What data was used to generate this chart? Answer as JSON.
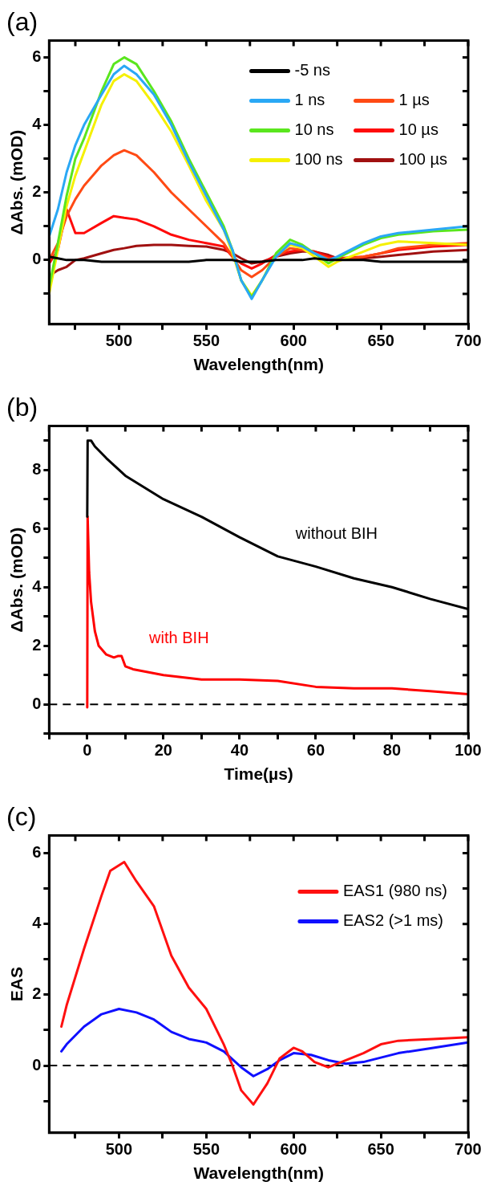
{
  "chart_data": [
    {
      "type": "line",
      "title": "(a)",
      "xlabel": "Wavelength(nm)",
      "ylabel": "ΔAbs. (mOD)",
      "legend": "top right",
      "x": [
        460,
        465,
        470,
        475,
        480,
        490,
        497,
        503,
        510,
        520,
        530,
        540,
        550,
        560,
        565,
        570,
        576,
        582,
        590,
        598,
        605,
        612,
        620,
        625,
        640,
        650,
        660,
        680,
        700
      ],
      "series": [
        {
          "name": "-5 ns",
          "color": "#000000",
          "values": [
            0.1,
            0.05,
            0.0,
            0.0,
            0.0,
            -0.05,
            -0.05,
            -0.05,
            -0.05,
            -0.05,
            -0.05,
            -0.05,
            0.0,
            0.0,
            0.0,
            -0.05,
            -0.05,
            -0.05,
            0.0,
            0.0,
            0.0,
            0.05,
            0.0,
            0.0,
            0.0,
            -0.05,
            -0.05,
            -0.05,
            -0.05
          ]
        },
        {
          "name": "1 ns",
          "color": "#2aa8f5",
          "values": [
            0.7,
            1.5,
            2.6,
            3.4,
            4.0,
            4.9,
            5.5,
            5.75,
            5.5,
            4.9,
            4.0,
            2.9,
            1.9,
            0.9,
            0.3,
            -0.6,
            -1.15,
            -0.6,
            0.1,
            0.5,
            0.4,
            0.2,
            0.0,
            0.1,
            0.5,
            0.7,
            0.8,
            0.9,
            1.0
          ]
        },
        {
          "name": "10 ns",
          "color": "#5ae61e",
          "values": [
            -0.8,
            0.5,
            1.9,
            3.0,
            3.6,
            5.0,
            5.8,
            6.0,
            5.8,
            5.0,
            4.1,
            3.0,
            2.0,
            1.0,
            0.3,
            -0.6,
            -1.1,
            -0.6,
            0.2,
            0.6,
            0.45,
            0.2,
            -0.1,
            0.05,
            0.45,
            0.65,
            0.75,
            0.85,
            0.9
          ]
        },
        {
          "name": "100 ns",
          "color": "#f5f000",
          "values": [
            -1.0,
            0.3,
            1.6,
            2.5,
            3.2,
            4.6,
            5.3,
            5.5,
            5.3,
            4.6,
            3.8,
            2.8,
            1.75,
            0.9,
            0.2,
            -0.6,
            -1.05,
            -0.6,
            0.15,
            0.45,
            0.35,
            0.1,
            -0.2,
            -0.05,
            0.25,
            0.45,
            0.55,
            0.5,
            0.45
          ]
        },
        {
          "name": "1 µs",
          "color": "#ff4a14",
          "values": [
            0.0,
            0.5,
            1.3,
            1.8,
            2.2,
            2.8,
            3.1,
            3.25,
            3.1,
            2.6,
            2.0,
            1.5,
            1.0,
            0.5,
            0.1,
            -0.3,
            -0.5,
            -0.3,
            0.1,
            0.35,
            0.3,
            0.2,
            0.05,
            0.0,
            0.1,
            0.2,
            0.35,
            0.45,
            0.5
          ]
        },
        {
          "name": "10 µs",
          "color": "#ff0a0a",
          "values": [
            -0.1,
            0.3,
            1.5,
            0.8,
            0.8,
            1.1,
            1.3,
            1.25,
            1.2,
            1.0,
            0.75,
            0.6,
            0.5,
            0.4,
            0.1,
            -0.1,
            -0.25,
            -0.1,
            0.15,
            0.25,
            0.3,
            0.25,
            0.1,
            0.05,
            0.1,
            0.2,
            0.3,
            0.4,
            0.45
          ]
        },
        {
          "name": "100 µs",
          "color": "#a01010",
          "x": [
            462,
            465,
            470,
            475,
            480,
            490,
            497,
            503,
            510,
            520,
            530,
            540,
            550,
            560,
            565,
            570,
            576,
            582,
            590,
            598,
            605,
            612,
            620,
            625,
            640,
            650,
            660,
            680,
            700
          ],
          "values": [
            -0.4,
            -0.3,
            -0.2,
            0.0,
            0.05,
            0.2,
            0.3,
            0.35,
            0.42,
            0.45,
            0.45,
            0.42,
            0.4,
            0.3,
            0.2,
            0.05,
            -0.1,
            -0.05,
            0.1,
            0.2,
            0.25,
            0.25,
            0.15,
            0.05,
            0.05,
            0.1,
            0.15,
            0.25,
            0.3
          ]
        }
      ],
      "xlim": [
        460,
        700
      ],
      "xticks": [
        {
          "value": 475,
          "label": null
        },
        500,
        {
          "value": 525,
          "label": null
        },
        550,
        {
          "value": 575,
          "label": null
        },
        600,
        {
          "value": 625,
          "label": null
        },
        650,
        {
          "value": 675,
          "label": null
        },
        700
      ],
      "ylim": [
        -1.9,
        6.5
      ],
      "yticks": [
        {
          "value": -1,
          "label": null
        },
        0,
        {
          "value": 1,
          "label": null
        },
        2,
        {
          "value": 3,
          "label": null
        },
        4,
        {
          "value": 5,
          "label": null
        },
        6
      ]
    },
    {
      "type": "line",
      "title": "(b)",
      "xlabel": "Time(µs)",
      "ylabel": "ΔAbs. (mOD)",
      "series": [
        {
          "name": "without BIH",
          "color": "#000000",
          "x": [
            0,
            0.1,
            1,
            2,
            5,
            10,
            20,
            30,
            40,
            50,
            60,
            70,
            80,
            90,
            100
          ],
          "values": [
            6.4,
            9.0,
            9.0,
            8.8,
            8.4,
            7.8,
            7.0,
            6.4,
            5.7,
            5.05,
            4.7,
            4.3,
            4.0,
            3.6,
            3.25
          ]
        },
        {
          "name": "with BIH",
          "color": "#ff0000",
          "x": [
            0,
            0.1,
            0.5,
            1,
            2,
            3,
            5,
            7,
            8,
            9,
            10,
            12,
            20,
            30,
            40,
            50,
            60,
            70,
            80,
            90,
            100
          ],
          "values": [
            -0.1,
            6.4,
            4.5,
            3.5,
            2.5,
            2.0,
            1.7,
            1.6,
            1.65,
            1.65,
            1.3,
            1.2,
            1.0,
            0.85,
            0.85,
            0.8,
            0.6,
            0.55,
            0.55,
            0.45,
            0.35
          ]
        }
      ],
      "ref_lines": [
        {
          "axis": "y",
          "value": 0,
          "color": "#000000",
          "line_style": "dashed"
        }
      ],
      "xlim": [
        -10,
        100
      ],
      "xticks": [
        {
          "value": -10,
          "label": null
        },
        0,
        {
          "value": 10,
          "label": null
        },
        20,
        {
          "value": 30,
          "label": null
        },
        40,
        {
          "value": 50,
          "label": null
        },
        60,
        {
          "value": 70,
          "label": null
        },
        80,
        {
          "value": 90,
          "label": null
        },
        100
      ],
      "ylim": [
        -1,
        9.5
      ],
      "yticks": [
        {
          "value": -1,
          "label": null
        },
        0,
        {
          "value": 1,
          "label": null
        },
        2,
        {
          "value": 3,
          "label": null
        },
        4,
        {
          "value": 5,
          "label": null
        },
        6,
        {
          "value": 7,
          "label": null
        },
        8,
        {
          "value": 9,
          "label": null
        }
      ]
    },
    {
      "type": "line",
      "title": "(c)",
      "xlabel": "Wavelength(nm)",
      "ylabel": "EAS",
      "legend": "top right",
      "series": [
        {
          "name": "EAS1 (980 ns)",
          "color": "#ff1010",
          "x": [
            467,
            470,
            480,
            490,
            495,
            503,
            510,
            520,
            530,
            540,
            550,
            560,
            565,
            570,
            577,
            585,
            592,
            600,
            605,
            612,
            620,
            630,
            640,
            650,
            660,
            680,
            700
          ],
          "values": [
            1.1,
            1.7,
            3.3,
            4.8,
            5.5,
            5.75,
            5.2,
            4.5,
            3.1,
            2.2,
            1.6,
            0.6,
            0.0,
            -0.7,
            -1.1,
            -0.5,
            0.2,
            0.5,
            0.4,
            0.1,
            -0.05,
            0.15,
            0.35,
            0.6,
            0.7,
            0.75,
            0.8
          ]
        },
        {
          "name": "EAS2 (>1 ms)",
          "color": "#1010ff",
          "x": [
            467,
            470,
            480,
            490,
            500,
            510,
            520,
            530,
            540,
            550,
            560,
            570,
            577,
            585,
            592,
            600,
            610,
            620,
            630,
            640,
            660,
            680,
            700
          ],
          "values": [
            0.4,
            0.6,
            1.1,
            1.45,
            1.6,
            1.5,
            1.3,
            0.95,
            0.75,
            0.65,
            0.4,
            -0.05,
            -0.3,
            -0.1,
            0.15,
            0.35,
            0.3,
            0.15,
            0.05,
            0.1,
            0.35,
            0.5,
            0.65
          ]
        }
      ],
      "ref_lines": [
        {
          "axis": "y",
          "value": 0,
          "color": "#000000",
          "line_style": "dashed"
        }
      ],
      "xlim": [
        460,
        700
      ],
      "xticks": [
        {
          "value": 475,
          "label": null
        },
        500,
        {
          "value": 525,
          "label": null
        },
        550,
        {
          "value": 575,
          "label": null
        },
        600,
        {
          "value": 625,
          "label": null
        },
        650,
        {
          "value": 675,
          "label": null
        },
        700
      ],
      "ylim": [
        -1.9,
        6.5
      ],
      "yticks": [
        {
          "value": -1,
          "label": null
        },
        0,
        {
          "value": 1,
          "label": null
        },
        2,
        {
          "value": 3,
          "label": null
        },
        4,
        {
          "value": 5,
          "label": null
        },
        6
      ]
    }
  ]
}
